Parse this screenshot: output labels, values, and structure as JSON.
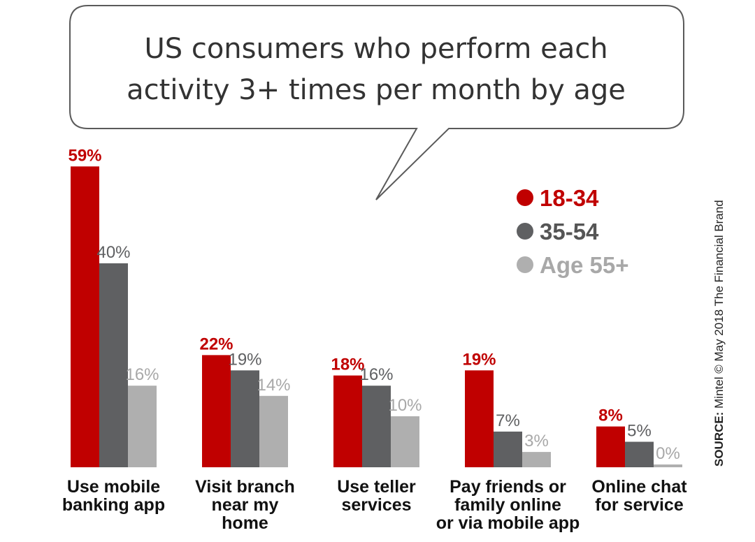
{
  "chart_data": {
    "type": "bar",
    "title_lines": [
      "US consumers who perform each",
      "activity 3+ times per month by age"
    ],
    "categories": [
      [
        "Use mobile",
        "banking app"
      ],
      [
        "Visit branch",
        "near my",
        "home"
      ],
      [
        "Use teller",
        "services"
      ],
      [
        "Pay friends or",
        "family online",
        "or via mobile app"
      ],
      [
        "Online chat",
        "for service"
      ]
    ],
    "series": [
      {
        "name": "18-34",
        "color": "#c00000",
        "values": [
          59,
          22,
          18,
          19,
          8
        ],
        "labels": [
          "59%",
          "22%",
          "18%",
          "19%",
          "8%"
        ]
      },
      {
        "name": "35-54",
        "color": "#5f6062",
        "values": [
          40,
          19,
          16,
          7,
          5
        ],
        "labels": [
          "40%",
          "19%",
          "16%",
          "7%",
          "5%"
        ]
      },
      {
        "name": "Age 55+",
        "color": "#afafaf",
        "values": [
          16,
          14,
          10,
          3,
          0
        ],
        "labels": [
          "16%",
          "14%",
          "10%",
          "3%",
          "0%"
        ]
      }
    ],
    "ylim": [
      0,
      60
    ],
    "legend_position": "right",
    "grid": false
  },
  "source": {
    "label": "SOURCE:",
    "text": "Mintel © May 2018 The Financial Brand"
  }
}
